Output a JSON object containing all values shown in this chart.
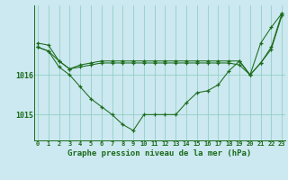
{
  "title": "Graphe pression niveau de la mer (hPa)",
  "background_color": "#cce8f0",
  "plot_bg_color": "#cce8f0",
  "line_color": "#1a6b1a",
  "grid_color": "#88ccbb",
  "hours": [
    0,
    1,
    2,
    3,
    4,
    5,
    6,
    7,
    8,
    9,
    10,
    11,
    12,
    13,
    14,
    15,
    16,
    17,
    18,
    19,
    20,
    21,
    22,
    23
  ],
  "series_vshaped": [
    1016.7,
    1016.6,
    1016.2,
    1016.0,
    1015.7,
    1015.4,
    1015.2,
    1015.0,
    1014.75,
    1014.6,
    1015.0,
    1015.0,
    1015.0,
    1015.0,
    1015.3,
    1015.55,
    1015.6,
    1015.75,
    1016.1,
    1016.35,
    1016.0,
    1016.8,
    1017.2,
    1017.55
  ],
  "series_flat": [
    1016.7,
    1016.6,
    1016.35,
    1016.15,
    1016.2,
    1016.25,
    1016.3,
    1016.3,
    1016.3,
    1016.3,
    1016.3,
    1016.3,
    1016.3,
    1016.3,
    1016.3,
    1016.3,
    1016.3,
    1016.3,
    1016.3,
    1016.25,
    1016.0,
    1016.3,
    1016.65,
    1017.5
  ],
  "series_top": [
    1016.8,
    1016.75,
    1016.35,
    1016.15,
    1016.25,
    1016.3,
    1016.35,
    1016.35,
    1016.35,
    1016.35,
    1016.35,
    1016.35,
    1016.35,
    1016.35,
    1016.35,
    1016.35,
    1016.35,
    1016.35,
    1016.35,
    1016.35,
    1016.0,
    1016.3,
    1016.7,
    1017.55
  ],
  "ylim_min": 1014.35,
  "ylim_max": 1017.75,
  "ytick_positions": [
    1015.0,
    1016.0
  ],
  "ytick_labels": [
    "1015",
    "1016"
  ],
  "title_fontsize": 6.5
}
